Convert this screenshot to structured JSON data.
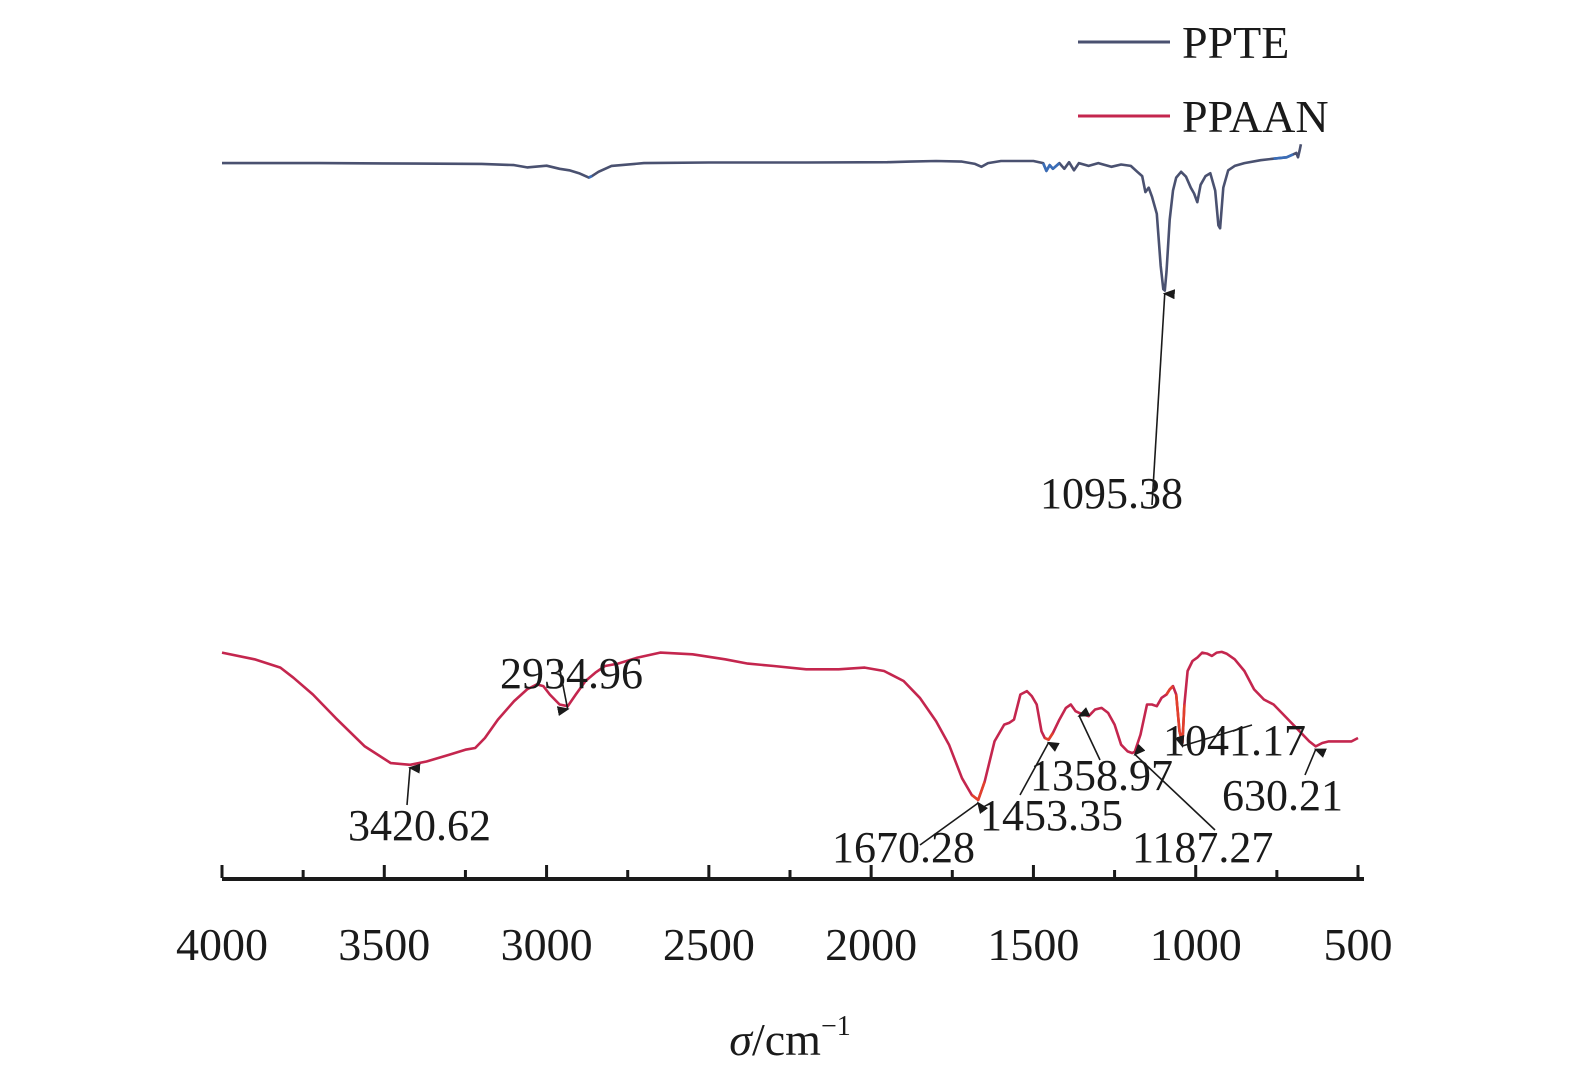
{
  "chart_data": {
    "type": "line",
    "xlabel_symbol": "σ",
    "xlabel_unit": "/cm",
    "xlabel_exp": "−1",
    "xlim": [
      4000,
      500
    ],
    "x_ticks": [
      4000,
      3500,
      3000,
      2500,
      2000,
      1500,
      1000,
      500
    ],
    "x_tick_labels": [
      "4000",
      "3500",
      "3000",
      "2500",
      "2000",
      "1500",
      "1000",
      "500"
    ],
    "legend_position": "top-right",
    "series": [
      {
        "name": "PPTE",
        "color": "#4a5170",
        "accent_color": "#3a6db8",
        "points": [
          [
            4000,
            0.955
          ],
          [
            3700,
            0.955
          ],
          [
            3400,
            0.953
          ],
          [
            3200,
            0.952
          ],
          [
            3100,
            0.948
          ],
          [
            3060,
            0.94
          ],
          [
            3000,
            0.946
          ],
          [
            2960,
            0.935
          ],
          [
            2930,
            0.93
          ],
          [
            2900,
            0.92
          ],
          [
            2870,
            0.905
          ],
          [
            2860,
            0.91
          ],
          [
            2840,
            0.925
          ],
          [
            2800,
            0.945
          ],
          [
            2700,
            0.955
          ],
          [
            2500,
            0.957
          ],
          [
            2200,
            0.957
          ],
          [
            1950,
            0.958
          ],
          [
            1880,
            0.96
          ],
          [
            1800,
            0.962
          ],
          [
            1720,
            0.96
          ],
          [
            1680,
            0.952
          ],
          [
            1660,
            0.942
          ],
          [
            1640,
            0.955
          ],
          [
            1600,
            0.962
          ],
          [
            1500,
            0.962
          ],
          [
            1470,
            0.955
          ],
          [
            1460,
            0.928
          ],
          [
            1450,
            0.948
          ],
          [
            1440,
            0.935
          ],
          [
            1420,
            0.955
          ],
          [
            1405,
            0.935
          ],
          [
            1390,
            0.958
          ],
          [
            1375,
            0.93
          ],
          [
            1360,
            0.955
          ],
          [
            1330,
            0.945
          ],
          [
            1300,
            0.955
          ],
          [
            1260,
            0.942
          ],
          [
            1230,
            0.95
          ],
          [
            1200,
            0.945
          ],
          [
            1180,
            0.925
          ],
          [
            1165,
            0.91
          ],
          [
            1155,
            0.855
          ],
          [
            1145,
            0.87
          ],
          [
            1135,
            0.84
          ],
          [
            1120,
            0.78
          ],
          [
            1108,
            0.6
          ],
          [
            1100,
            0.52
          ],
          [
            1095.38,
            0.515
          ],
          [
            1090,
            0.58
          ],
          [
            1080,
            0.76
          ],
          [
            1070,
            0.86
          ],
          [
            1060,
            0.905
          ],
          [
            1045,
            0.925
          ],
          [
            1030,
            0.908
          ],
          [
            1015,
            0.87
          ],
          [
            1005,
            0.85
          ],
          [
            995,
            0.82
          ],
          [
            985,
            0.88
          ],
          [
            970,
            0.91
          ],
          [
            955,
            0.92
          ],
          [
            940,
            0.86
          ],
          [
            930,
            0.74
          ],
          [
            925,
            0.73
          ],
          [
            915,
            0.87
          ],
          [
            900,
            0.93
          ],
          [
            880,
            0.945
          ],
          [
            850,
            0.955
          ],
          [
            800,
            0.965
          ],
          [
            760,
            0.97
          ],
          [
            720,
            0.975
          ],
          [
            700,
            0.985
          ],
          [
            690,
            0.99
          ],
          [
            685,
            0.975
          ],
          [
            680,
            0.998
          ],
          [
            676,
            1.02
          ]
        ]
      },
      {
        "name": "PPAAN",
        "color": "#c4264e",
        "accent_color": "#e2402c",
        "points": [
          [
            4000,
            0.455
          ],
          [
            3900,
            0.435
          ],
          [
            3820,
            0.41
          ],
          [
            3780,
            0.38
          ],
          [
            3720,
            0.33
          ],
          [
            3650,
            0.26
          ],
          [
            3560,
            0.175
          ],
          [
            3480,
            0.125
          ],
          [
            3420.62,
            0.12
          ],
          [
            3370,
            0.13
          ],
          [
            3300,
            0.15
          ],
          [
            3250,
            0.165
          ],
          [
            3220,
            0.17
          ],
          [
            3190,
            0.2
          ],
          [
            3150,
            0.255
          ],
          [
            3100,
            0.31
          ],
          [
            3060,
            0.345
          ],
          [
            3030,
            0.36
          ],
          [
            3010,
            0.355
          ],
          [
            2990,
            0.33
          ],
          [
            2960,
            0.3
          ],
          [
            2934.96,
            0.295
          ],
          [
            2910,
            0.33
          ],
          [
            2880,
            0.37
          ],
          [
            2850,
            0.395
          ],
          [
            2820,
            0.415
          ],
          [
            2780,
            0.422
          ],
          [
            2720,
            0.44
          ],
          [
            2650,
            0.455
          ],
          [
            2550,
            0.45
          ],
          [
            2450,
            0.435
          ],
          [
            2380,
            0.422
          ],
          [
            2300,
            0.415
          ],
          [
            2200,
            0.405
          ],
          [
            2100,
            0.405
          ],
          [
            2020,
            0.41
          ],
          [
            1960,
            0.4
          ],
          [
            1900,
            0.37
          ],
          [
            1850,
            0.32
          ],
          [
            1800,
            0.25
          ],
          [
            1760,
            0.18
          ],
          [
            1720,
            0.08
          ],
          [
            1690,
            0.03
          ],
          [
            1670.28,
            0.015
          ],
          [
            1650,
            0.07
          ],
          [
            1620,
            0.19
          ],
          [
            1590,
            0.24
          ],
          [
            1575,
            0.245
          ],
          [
            1560,
            0.255
          ],
          [
            1540,
            0.33
          ],
          [
            1520,
            0.34
          ],
          [
            1505,
            0.325
          ],
          [
            1490,
            0.3
          ],
          [
            1475,
            0.22
          ],
          [
            1465,
            0.2
          ],
          [
            1453.35,
            0.195
          ],
          [
            1440,
            0.215
          ],
          [
            1420,
            0.255
          ],
          [
            1400,
            0.29
          ],
          [
            1385,
            0.3
          ],
          [
            1370,
            0.28
          ],
          [
            1358.97,
            0.275
          ],
          [
            1345,
            0.27
          ],
          [
            1330,
            0.265
          ],
          [
            1310,
            0.285
          ],
          [
            1290,
            0.29
          ],
          [
            1270,
            0.275
          ],
          [
            1250,
            0.24
          ],
          [
            1230,
            0.18
          ],
          [
            1210,
            0.16
          ],
          [
            1195,
            0.155
          ],
          [
            1187.27,
            0.16
          ],
          [
            1170,
            0.21
          ],
          [
            1150,
            0.3
          ],
          [
            1135,
            0.3
          ],
          [
            1120,
            0.295
          ],
          [
            1105,
            0.32
          ],
          [
            1090,
            0.33
          ],
          [
            1080,
            0.345
          ],
          [
            1070,
            0.355
          ],
          [
            1060,
            0.33
          ],
          [
            1050,
            0.22
          ],
          [
            1041.17,
            0.185
          ],
          [
            1035,
            0.3
          ],
          [
            1025,
            0.4
          ],
          [
            1010,
            0.43
          ],
          [
            995,
            0.44
          ],
          [
            980,
            0.455
          ],
          [
            965,
            0.452
          ],
          [
            950,
            0.445
          ],
          [
            935,
            0.455
          ],
          [
            920,
            0.457
          ],
          [
            905,
            0.452
          ],
          [
            880,
            0.435
          ],
          [
            850,
            0.4
          ],
          [
            820,
            0.345
          ],
          [
            790,
            0.315
          ],
          [
            760,
            0.3
          ],
          [
            720,
            0.26
          ],
          [
            680,
            0.22
          ],
          [
            650,
            0.19
          ],
          [
            630.21,
            0.175
          ],
          [
            610,
            0.185
          ],
          [
            590,
            0.19
          ],
          [
            550,
            0.19
          ],
          [
            520,
            0.19
          ],
          [
            500,
            0.2
          ]
        ]
      }
    ],
    "annotations": [
      {
        "text": "1095.38",
        "series": "PPTE",
        "x": 1095.38
      },
      {
        "text": "3420.62",
        "series": "PPAAN",
        "x": 3420.62
      },
      {
        "text": "2934.96",
        "series": "PPAAN",
        "x": 2934.96
      },
      {
        "text": "1670.28",
        "series": "PPAAN",
        "x": 1670.28
      },
      {
        "text": "1453.35",
        "series": "PPAAN",
        "x": 1453.35
      },
      {
        "text": "1358.97",
        "series": "PPAAN",
        "x": 1358.97
      },
      {
        "text": "1187.27",
        "series": "PPAAN",
        "x": 1187.27
      },
      {
        "text": "1041.17",
        "series": "PPAAN",
        "x": 1041.17
      },
      {
        "text": "630.21",
        "series": "PPAAN",
        "x": 630.21
      }
    ]
  }
}
